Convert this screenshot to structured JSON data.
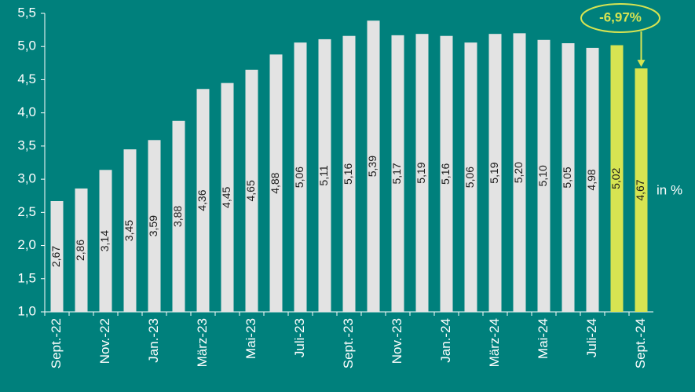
{
  "chart_data": {
    "type": "bar",
    "categories": [
      "Sept.-22",
      null,
      "Nov.-22",
      null,
      "Jan.-23",
      null,
      "März-23",
      null,
      "Mai-23",
      null,
      "Juli-23",
      null,
      "Sept.-23",
      null,
      "Nov.-23",
      null,
      "Jan.-24",
      null,
      "März-24",
      null,
      "Mai-24",
      null,
      "Juli-24",
      null,
      "Sept.-24"
    ],
    "values": [
      2.67,
      2.86,
      3.14,
      3.45,
      3.59,
      3.88,
      4.36,
      4.45,
      4.65,
      4.88,
      5.06,
      5.11,
      5.16,
      5.39,
      5.17,
      5.19,
      5.16,
      5.06,
      5.19,
      5.2,
      5.1,
      5.05,
      4.98,
      5.02,
      4.67
    ],
    "value_labels": [
      "2,67",
      "2,86",
      "3,14",
      "3,45",
      "3,59",
      "3,88",
      "4,36",
      "4,45",
      "4,65",
      "4,88",
      "5,06",
      "5,11",
      "5,16",
      "5,39",
      "5,17",
      "5,19",
      "5,16",
      "5,06",
      "5,19",
      "5,20",
      "5,10",
      "5,05",
      "4,98",
      "5,02",
      "4,67"
    ],
    "colors": [
      "#e3e3e3",
      "#e3e3e3",
      "#e3e3e3",
      "#e3e3e3",
      "#e3e3e3",
      "#e3e3e3",
      "#e3e3e3",
      "#e3e3e3",
      "#e3e3e3",
      "#e3e3e3",
      "#e3e3e3",
      "#e3e3e3",
      "#e3e3e3",
      "#e3e3e3",
      "#e3e3e3",
      "#e3e3e3",
      "#e3e3e3",
      "#e3e3e3",
      "#e3e3e3",
      "#e3e3e3",
      "#e3e3e3",
      "#e3e3e3",
      "#e3e3e3",
      "#d7e452",
      "#d7e452"
    ],
    "ylim": [
      1.0,
      5.5
    ],
    "yticks": [
      {
        "value": 1.0,
        "label": "1,0"
      },
      {
        "value": 1.5,
        "label": "1,5"
      },
      {
        "value": 2.0,
        "label": "2,0"
      },
      {
        "value": 2.5,
        "label": "2,5"
      },
      {
        "value": 3.0,
        "label": "3,0"
      },
      {
        "value": 3.5,
        "label": "3,5"
      },
      {
        "value": 4.0,
        "label": "4,0"
      },
      {
        "value": 4.5,
        "label": "4,5"
      },
      {
        "value": 5.0,
        "label": "5,0"
      },
      {
        "value": 5.5,
        "label": "5,5"
      }
    ],
    "unit_label": "in %",
    "annotation": "-6,97%"
  }
}
